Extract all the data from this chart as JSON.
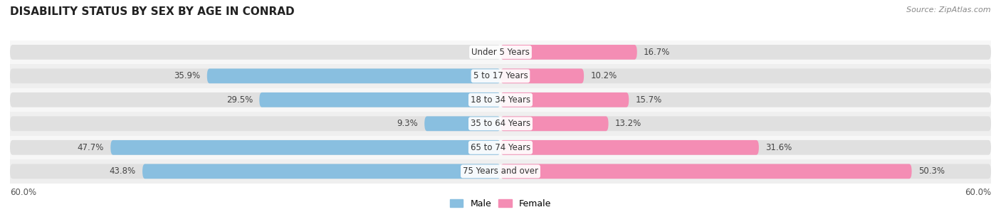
{
  "title": "DISABILITY STATUS BY SEX BY AGE IN CONRAD",
  "source": "Source: ZipAtlas.com",
  "categories": [
    "Under 5 Years",
    "5 to 17 Years",
    "18 to 34 Years",
    "35 to 64 Years",
    "65 to 74 Years",
    "75 Years and over"
  ],
  "male_values": [
    0.0,
    35.9,
    29.5,
    9.3,
    47.7,
    43.8
  ],
  "female_values": [
    16.7,
    10.2,
    15.7,
    13.2,
    31.6,
    50.3
  ],
  "male_color": "#89bfe0",
  "female_color": "#f48db4",
  "bar_bg_color": "#e0e0e0",
  "xlim": 60.0,
  "title_fontsize": 11,
  "bar_height": 0.62,
  "background_color": "#ffffff",
  "row_bg_even": "#f7f7f7",
  "row_bg_odd": "#efefef",
  "legend_male": "Male",
  "legend_female": "Female",
  "value_label_color": "#444444",
  "category_label_color": "#333333",
  "axis_label_color": "#555555"
}
